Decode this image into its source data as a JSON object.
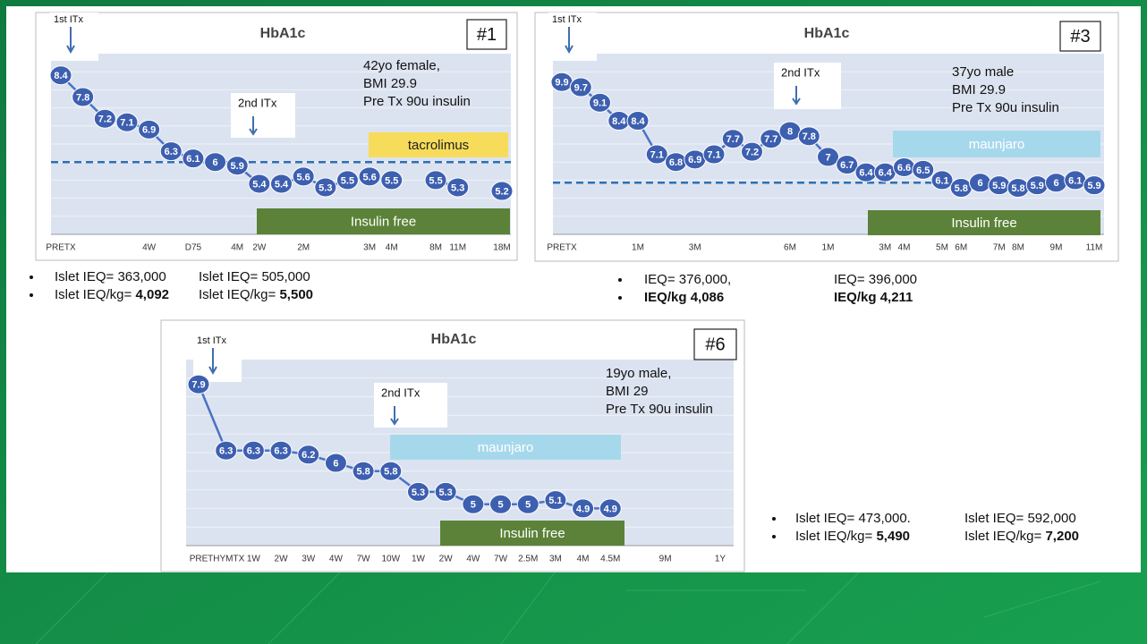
{
  "chart_data": [
    {
      "type": "line",
      "title": "HbA1c",
      "panel_label": "#1",
      "info": [
        "42yo female,",
        "BMI 29.9",
        "Pre Tx 90u insulin"
      ],
      "markers": [
        "1st ITx",
        "2nd ITx"
      ],
      "bands": [
        {
          "label": "tacrolimus",
          "color": "#f7dc5b"
        },
        {
          "label": "Insulin free",
          "color": "#5b8238"
        }
      ],
      "categories": [
        "PRETX",
        null,
        null,
        null,
        "4W",
        null,
        "D75",
        null,
        "4M",
        "2W",
        null,
        "2M",
        null,
        null,
        "3M",
        "4M",
        null,
        "8M",
        "11M",
        null,
        "18M"
      ],
      "values": [
        8.4,
        7.8,
        7.2,
        7.1,
        6.9,
        6.3,
        6.1,
        6,
        5.9,
        5.4,
        5.4,
        5.6,
        5.3,
        5.5,
        5.6,
        5.5,
        null,
        5.5,
        5.3,
        null,
        5.2
      ],
      "color": "#3d5fb0",
      "reference_line": 6,
      "ylim": [
        4,
        9
      ]
    },
    {
      "type": "line",
      "title": "HbA1c",
      "panel_label": "#3",
      "info": [
        "37yo male",
        "BMI 29.9",
        "Pre Tx 90u insulin"
      ],
      "markers": [
        "1st ITx",
        "2nd ITx"
      ],
      "bands": [
        {
          "label": "maunjaro",
          "color": "#a6d8ec"
        },
        {
          "label": "Insulin free",
          "color": "#5b8238"
        }
      ],
      "categories": [
        "PRETX",
        null,
        null,
        null,
        "1M",
        null,
        null,
        "3M",
        null,
        null,
        null,
        null,
        "6M",
        null,
        "1M",
        null,
        null,
        "3M",
        "4M",
        null,
        "5M",
        "6M",
        null,
        "7M",
        "8M",
        null,
        "9M",
        null,
        "11M"
      ],
      "values": [
        9.9,
        9.7,
        9.1,
        8.4,
        8.4,
        7.1,
        6.8,
        6.9,
        7.1,
        7.7,
        7.2,
        7.7,
        8,
        7.8,
        7,
        6.7,
        6.4,
        6.4,
        6.6,
        6.5,
        6.1,
        5.8,
        6,
        5.9,
        5.8,
        5.9,
        6,
        6.1,
        5.9
      ],
      "color": "#3d5fb0",
      "reference_line": 6,
      "ylim": [
        4,
        11
      ]
    },
    {
      "type": "line",
      "title": "HbA1c",
      "panel_label": "#6",
      "info": [
        "19yo male,",
        "BMI 29",
        "Pre Tx 90u insulin"
      ],
      "markers": [
        "1st ITx",
        "2nd ITx"
      ],
      "bands": [
        {
          "label": "maunjaro",
          "color": "#a6d8ec"
        },
        {
          "label": "Insulin free",
          "color": "#5b8238"
        }
      ],
      "categories": [
        "PRE",
        "THYMTX",
        "1W",
        "2W",
        "3W",
        "4W",
        "7W",
        "10W",
        "1W",
        "2W",
        "4W",
        "7W",
        "2.5M",
        "3M",
        "4M",
        "4.5M",
        null,
        "9M",
        null,
        "1Y"
      ],
      "values": [
        7.9,
        6.3,
        6.3,
        6.3,
        6.2,
        6,
        5.8,
        5.8,
        5.3,
        5.3,
        5,
        5,
        5,
        5.1,
        4.9,
        4.9,
        null,
        null,
        null,
        null
      ],
      "color": "#3d5fb0",
      "ylim": [
        4,
        8.5
      ]
    }
  ],
  "notes": [
    {
      "rows": [
        {
          "bold": "none",
          "cells": [
            {
              "label": "Islet IEQ=",
              "value": "363,000"
            },
            {
              "label": "Islet IEQ=",
              "value": "505,000"
            }
          ]
        },
        {
          "bold": "value",
          "cells": [
            {
              "label": "Islet IEQ/kg=",
              "value": "4,092"
            },
            {
              "label": "Islet IEQ/kg=",
              "value": "5,500"
            }
          ]
        }
      ]
    },
    {
      "rows": [
        {
          "bold": "none",
          "cells": [
            {
              "label": "IEQ=",
              "value": "376,000,"
            },
            {
              "label": "IEQ=",
              "value": "396,000"
            }
          ]
        },
        {
          "bold": "all",
          "cells": [
            {
              "label": "IEQ/kg",
              "value": "4,086"
            },
            {
              "label": "IEQ/kg",
              "value": "4,211"
            }
          ]
        }
      ]
    },
    {
      "rows": [
        {
          "bold": "none",
          "cells": [
            {
              "label": "Islet IEQ=",
              "value": "473,000."
            },
            {
              "label": "Islet IEQ=",
              "value": "592,000"
            }
          ]
        },
        {
          "bold": "value",
          "cells": [
            {
              "label": "Islet IEQ/kg=",
              "value": "5,490"
            },
            {
              "label": "Islet IEQ/kg=",
              "value": "7,200"
            }
          ]
        }
      ]
    }
  ]
}
